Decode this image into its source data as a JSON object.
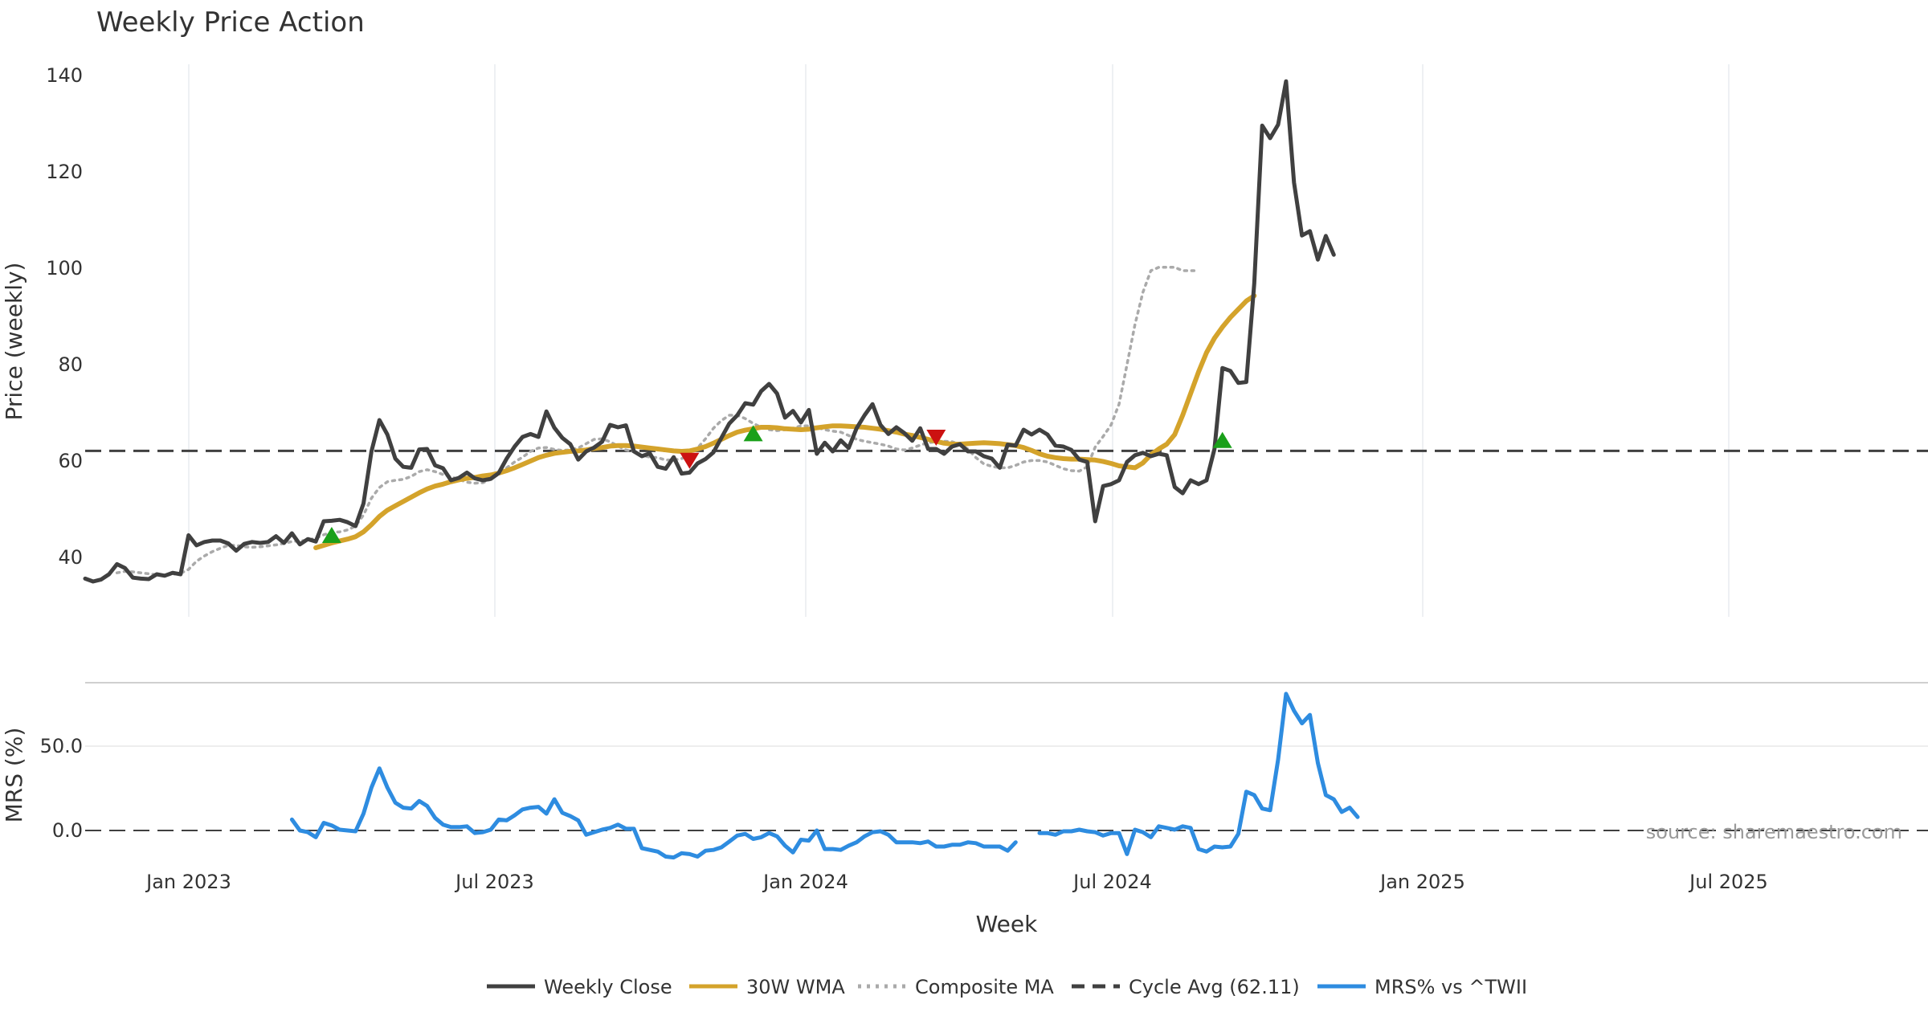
{
  "chart_data": {
    "type": "line",
    "title": "Weekly Price Action",
    "xlabel": "Week",
    "x_ticks": [
      "Jan 2023",
      "Jul 2023",
      "Jan 2024",
      "Jul 2024",
      "Jan 2025",
      "Jul 2025"
    ],
    "panels": [
      {
        "name": "price",
        "ylabel": "Price (weekly)",
        "ylim": [
          29,
          145
        ],
        "y_ticks": [
          40,
          60,
          80,
          100,
          120,
          140
        ],
        "series": [
          {
            "name": "Weekly Close",
            "color": "#404040",
            "style": "solid",
            "values": [
              35.6,
              35,
              35.4,
              36.5,
              38.6,
              37.8,
              35.8,
              35.6,
              35.5,
              36.5,
              36.2,
              36.8,
              36.5,
              44.6,
              42.5,
              43.2,
              43.5,
              43.5,
              42.9,
              41.4,
              42.8,
              43.2,
              43,
              43.2,
              44.4,
              43,
              45,
              42.7,
              43.8,
              43.3,
              47.5,
              47.6,
              47.8,
              47.3,
              46.5,
              51.2,
              62,
              68.5,
              65.5,
              60.5,
              58.8,
              58.6,
              62.4,
              62.5,
              59.1,
              58.5,
              56,
              56.5,
              57.6,
              56.4,
              56,
              56.3,
              57.5,
              60.5,
              63,
              65,
              65.6,
              65,
              70.3,
              66.9,
              64.8,
              63.5,
              60.3,
              62,
              62.8,
              64,
              67.5,
              67,
              67.4,
              62,
              61,
              61.6,
              58.8,
              58.4,
              60.8,
              57.4,
              57.6,
              59.5,
              60.4,
              61.8,
              64.8,
              67.8,
              69.5,
              72,
              71.7,
              74.5,
              76,
              74,
              69,
              70.4,
              68,
              70.6,
              61.5,
              63.8,
              62,
              64.3,
              62.7,
              66.8,
              69.5,
              71.8,
              67.5,
              65.6,
              67,
              65.8,
              64.2,
              66.8,
              62.5,
              62.5,
              61.5,
              63,
              63.5,
              62,
              62,
              61,
              60.5,
              58.6,
              63.4,
              63.2,
              66.5,
              65.5,
              66.5,
              65.5,
              63.2,
              63,
              62.3,
              60.3,
              59.8,
              47.5,
              54.8,
              55.2,
              56,
              59.8,
              61.2,
              61.7,
              61,
              61.5,
              61.2,
              54.6,
              53.3,
              56,
              55.2,
              56,
              62.5,
              79.3,
              78.7,
              76.2,
              76.4,
              96.8,
              129.6,
              127,
              129.8,
              138.8,
              117.8,
              106.8,
              107.7,
              101.8,
              106.7,
              102.8
            ]
          },
          {
            "name": "30W WMA",
            "color": "#d4a32b",
            "style": "solid",
            "start_week": 29,
            "values": [
              42,
              42.5,
              43,
              43.4,
              43.8,
              44.3,
              45.3,
              46.8,
              48.5,
              49.8,
              50.7,
              51.6,
              52.5,
              53.4,
              54.2,
              54.8,
              55.2,
              55.7,
              56.1,
              56.4,
              56.6,
              56.9,
              57.1,
              57.5,
              58,
              58.6,
              59.3,
              60,
              60.7,
              61.2,
              61.6,
              61.8,
              62,
              62.1,
              62.3,
              62.6,
              62.8,
              63.1,
              63.2,
              63.2,
              63.1,
              62.9,
              62.7,
              62.5,
              62.3,
              62.1,
              62,
              62.1,
              62.5,
              63,
              63.7,
              64.5,
              65.3,
              66,
              66.4,
              66.7,
              67,
              67,
              66.9,
              66.7,
              66.6,
              66.5,
              66.6,
              66.9,
              67.1,
              67.3,
              67.3,
              67.2,
              67.1,
              67,
              66.8,
              66.6,
              66.3,
              66,
              65.6,
              65.3,
              64.9,
              64.5,
              64.1,
              63.7,
              63.5,
              63.5,
              63.6,
              63.7,
              63.8,
              63.7,
              63.6,
              63.4,
              63.2,
              62.8,
              62.2,
              61.5,
              61,
              60.7,
              60.5,
              60.4,
              60.4,
              60.3,
              60.2,
              59.9,
              59.5,
              59,
              58.8,
              58.6,
              59.6,
              61.3,
              62.5,
              63.5,
              65.5,
              69.5,
              74,
              78.5,
              82.5,
              85.5,
              87.8,
              89.8,
              91.5,
              93.2,
              94.3
            ]
          },
          {
            "name": "Composite MA",
            "color": "#aaaaaa",
            "style": "dotted",
            "start_week": 4,
            "values": [
              36.8,
              37.1,
              37,
              36.8,
              36.6,
              36.4,
              36.3,
              36.5,
              36.7,
              37.5,
              39.2,
              40.3,
              41.2,
              41.9,
              42.5,
              42.5,
              42.2,
              42.1,
              42.2,
              42.4,
              42.6,
              42.9,
              43.3,
              43.4,
              43.6,
              44,
              44.7,
              45.2,
              45.3,
              45.7,
              46.5,
              48.8,
              52.3,
              54.5,
              55.7,
              56,
              56.2,
              56.8,
              57.8,
              58.2,
              57.8,
              57.2,
              56.7,
              56.2,
              55.6,
              55.4,
              55.5,
              56.2,
              57.3,
              58.6,
              59.8,
              60.8,
              62,
              62.7,
              62.8,
              62.4,
              62.2,
              62.3,
              62.7,
              63.6,
              64.5,
              64.6,
              64,
              63.1,
              62.3,
              61.9,
              61.2,
              60.8,
              60.7,
              60.2,
              60.2,
              60.5,
              61.3,
              62.7,
              64.6,
              66.8,
              68.4,
              69.5,
              69.5,
              68.8,
              67.8,
              67,
              66.5,
              66.3,
              66.5,
              66.8,
              67.3,
              67.3,
              67,
              66.5,
              66.2,
              66,
              65.3,
              64.5,
              64.1,
              63.8,
              63.5,
              63.1,
              62.5,
              62.3,
              62.7,
              63.3,
              63.8,
              64,
              64.1,
              64,
              63.4,
              62.5,
              60.7,
              59.4,
              58.9,
              58.6,
              58.6,
              59.1,
              59.8,
              60.1,
              60.1,
              59.8,
              59.1,
              58.4,
              58,
              57.9,
              58.8,
              62.9,
              65.1,
              67.5,
              71.8,
              80,
              88.3,
              95,
              99.5,
              100.2,
              100.2,
              100.2,
              99.5,
              99.5,
              99.5
            ]
          }
        ],
        "reference_lines": [
          {
            "name": "Cycle Avg (62.11)",
            "value": 62.11,
            "color": "#404040",
            "style": "dashed"
          }
        ],
        "signals": {
          "buy": [
            {
              "week": 31,
              "value": 44.5
            },
            {
              "week": 84,
              "value": 65.6
            },
            {
              "week": 143,
              "value": 64.2
            }
          ],
          "sell": [
            {
              "week": 76,
              "value": 60.2
            },
            {
              "week": 107,
              "value": 65
            }
          ]
        }
      },
      {
        "name": "mrs",
        "ylabel": "MRS (%)",
        "ylim": [
          -30,
          90
        ],
        "y_ticks": [
          "0.0",
          "50.0"
        ],
        "series": [
          {
            "name": "MRS% vs ^TWII",
            "color": "#2e8ce0",
            "style": "solid",
            "start_week": 26,
            "values": [
              6.5,
              0,
              -1,
              -4,
              4.5,
              3,
              0.5,
              0,
              -0.5,
              10,
              25.5,
              36.8,
              25.5,
              16.5,
              13.5,
              13,
              17.5,
              14.5,
              7.5,
              3.5,
              2,
              2,
              2.5,
              -1.5,
              -1,
              0.5,
              6.5,
              6,
              9,
              12.5,
              13.5,
              14,
              10,
              18.5,
              10.5,
              8.5,
              6,
              -2.5,
              -1,
              0.5,
              1.5,
              3.5,
              1,
              1,
              -10.5,
              -11.5,
              -12.5,
              -15.5,
              -16,
              -13.5,
              -14,
              -15.5,
              -12,
              -11.5,
              -10,
              -6.5,
              -3,
              -2,
              -5,
              -4,
              -1.5,
              -3.5,
              -9,
              -13,
              -5.5,
              -6,
              0,
              -11,
              -11,
              -11.5,
              -9,
              -7,
              -3.5,
              -1,
              -0.5,
              -2.5,
              -7,
              -7,
              -7,
              -7.5,
              -6.5,
              -9.5,
              -9.5,
              -8.5,
              -8.5,
              -7,
              -7.5,
              -9.5,
              -9.5,
              -9.5,
              -12,
              -7,
              null,
              null,
              -1.5,
              -1.5,
              -2.5,
              -0.5,
              -0.5,
              0.5,
              -0.5,
              -1,
              -3,
              -1.5,
              -1.5,
              -14,
              0.5,
              -1,
              -4,
              2.5,
              1.5,
              0.5,
              2.5,
              1.5,
              -11,
              -12.5,
              -9.5,
              -10,
              -9.5,
              -2,
              23,
              21,
              13,
              12,
              42,
              81,
              71,
              63.5,
              68.5,
              40,
              21,
              18.5,
              11,
              13.5,
              8
            ]
          }
        ],
        "reference_lines": [
          {
            "value": 0,
            "color": "#404040",
            "style": "dashed"
          }
        ]
      }
    ],
    "legend": {
      "placement": "bottom-center",
      "items": [
        {
          "label": "Weekly Close",
          "color": "#404040",
          "style": "solid"
        },
        {
          "label": "30W WMA",
          "color": "#d4a32b",
          "style": "solid"
        },
        {
          "label": "Composite MA",
          "color": "#aaaaaa",
          "style": "dotted"
        },
        {
          "label": "Cycle Avg (62.11)",
          "color": "#404040",
          "style": "dashed"
        },
        {
          "label": "MRS% vs ^TWII",
          "color": "#2e8ce0",
          "style": "solid"
        }
      ]
    },
    "source": "source: sharemaestro.com"
  }
}
